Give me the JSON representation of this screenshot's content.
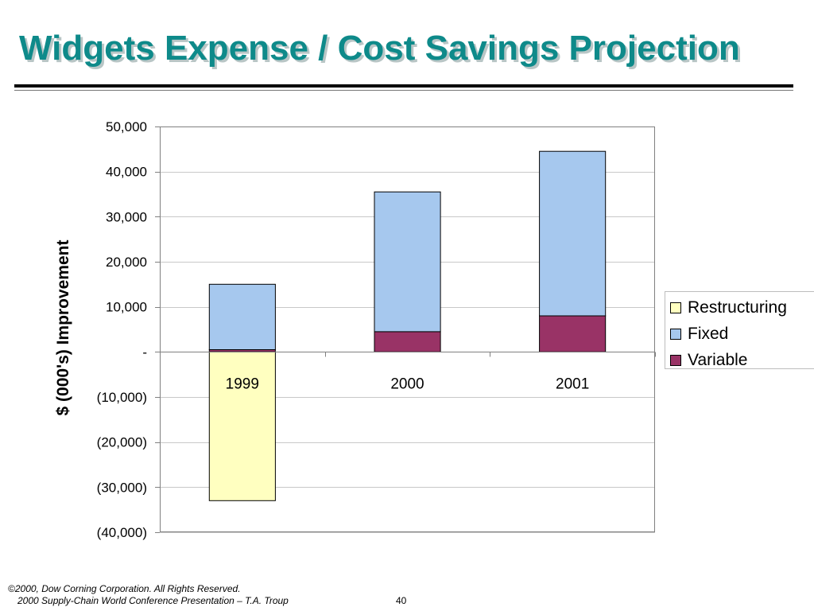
{
  "slide": {
    "title": "Widgets Expense / Cost Savings Projection",
    "footer": {
      "copyright": "©2000, Dow Corning Corporation. All Rights Reserved.",
      "presentation": "2000 Supply-Chain World Conference Presentation – T.A. Troup",
      "page": "40"
    }
  },
  "chart_data": {
    "type": "bar",
    "stacked": true,
    "title": "",
    "xlabel": "",
    "ylabel": "$ (000's) Improvement",
    "categories": [
      "1999",
      "2000",
      "2001"
    ],
    "series": [
      {
        "name": "Variable",
        "color": "#993366",
        "values": [
          500,
          4500,
          8000
        ]
      },
      {
        "name": "Fixed",
        "color": "#A6C8EE",
        "values": [
          14500,
          31000,
          36500
        ]
      },
      {
        "name": "Restructuring",
        "color": "#FFFFC0",
        "values": [
          -33000,
          0,
          0
        ]
      }
    ],
    "legend_order": [
      "Restructuring",
      "Fixed",
      "Variable"
    ],
    "legend_position": "right",
    "ylim": [
      -40000,
      50000
    ],
    "y_tick_labels": [
      "50,000",
      "40,000",
      "30,000",
      "20,000",
      "10,000",
      "-",
      "(10,000)",
      "(20,000)",
      "(30,000)",
      "(40,000)"
    ],
    "y_tick_values": [
      50000,
      40000,
      30000,
      20000,
      10000,
      0,
      -10000,
      -20000,
      -30000,
      -40000
    ],
    "grid": true,
    "plot_background": "#ffffff"
  }
}
